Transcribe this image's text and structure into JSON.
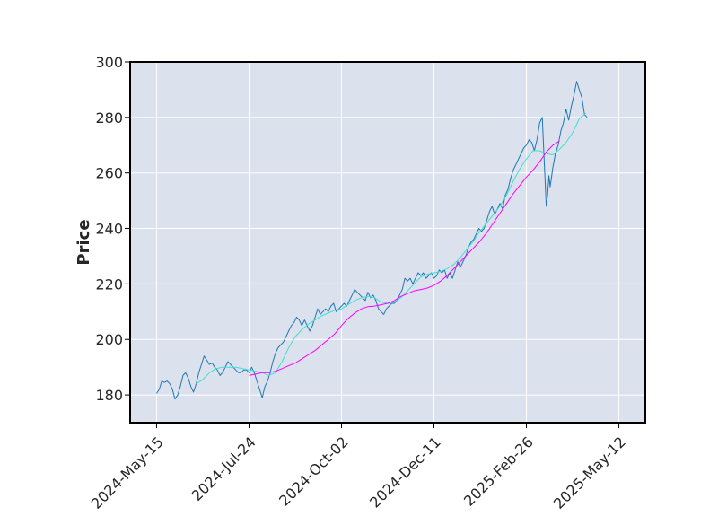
{
  "chart_data": {
    "type": "line",
    "title": "",
    "xlabel": "",
    "ylabel": "Price",
    "ylim": [
      170,
      300
    ],
    "yticks": [
      180,
      200,
      220,
      240,
      260,
      280,
      300
    ],
    "x_index_range": [
      -20,
      370
    ],
    "xticks": [
      {
        "index": 0,
        "label": "2024-May-15"
      },
      {
        "index": 70,
        "label": "2024-Jul-24"
      },
      {
        "index": 140,
        "label": "2024-Oct-02"
      },
      {
        "index": 210,
        "label": "2024-Dec-11"
      },
      {
        "index": 280,
        "label": "2025-Feb-26"
      },
      {
        "index": 350,
        "label": "2025-May-12"
      }
    ],
    "grid": true,
    "legend": "none",
    "colors": {
      "background": "#dce1ee",
      "grid": "#ffffff",
      "frame": "#000000"
    },
    "series": [
      {
        "color": "#1f77b4",
        "points": [
          [
            0,
            180.5
          ],
          [
            2,
            182
          ],
          [
            4,
            185
          ],
          [
            6,
            184.5
          ],
          [
            8,
            185
          ],
          [
            10,
            184
          ],
          [
            12,
            182
          ],
          [
            14,
            178.5
          ],
          [
            16,
            180
          ],
          [
            18,
            183
          ],
          [
            20,
            187
          ],
          [
            22,
            188
          ],
          [
            24,
            186
          ],
          [
            26,
            183
          ],
          [
            28,
            181
          ],
          [
            30,
            184
          ],
          [
            32,
            188
          ],
          [
            34,
            191
          ],
          [
            36,
            194
          ],
          [
            38,
            192.5
          ],
          [
            40,
            191
          ],
          [
            42,
            191.5
          ],
          [
            44,
            190
          ],
          [
            46,
            189
          ],
          [
            48,
            187
          ],
          [
            50,
            188
          ],
          [
            52,
            190
          ],
          [
            54,
            192
          ],
          [
            56,
            191
          ],
          [
            58,
            190
          ],
          [
            60,
            189
          ],
          [
            62,
            188
          ],
          [
            64,
            188
          ],
          [
            66,
            189
          ],
          [
            68,
            189
          ],
          [
            70,
            188
          ],
          [
            72,
            190
          ],
          [
            74,
            188
          ],
          [
            76,
            185
          ],
          [
            78,
            182
          ],
          [
            80,
            179
          ],
          [
            82,
            183
          ],
          [
            84,
            185
          ],
          [
            86,
            188
          ],
          [
            88,
            192
          ],
          [
            90,
            195
          ],
          [
            92,
            197
          ],
          [
            94,
            198
          ],
          [
            96,
            199
          ],
          [
            98,
            201
          ],
          [
            100,
            203
          ],
          [
            102,
            205
          ],
          [
            104,
            206
          ],
          [
            106,
            208
          ],
          [
            108,
            207
          ],
          [
            110,
            205
          ],
          [
            112,
            207
          ],
          [
            114,
            205
          ],
          [
            116,
            203
          ],
          [
            118,
            205
          ],
          [
            120,
            208
          ],
          [
            122,
            211
          ],
          [
            124,
            209
          ],
          [
            126,
            210
          ],
          [
            128,
            211
          ],
          [
            130,
            210
          ],
          [
            132,
            212
          ],
          [
            134,
            213
          ],
          [
            136,
            210
          ],
          [
            138,
            211
          ],
          [
            140,
            212
          ],
          [
            142,
            213
          ],
          [
            144,
            212
          ],
          [
            146,
            214
          ],
          [
            148,
            216
          ],
          [
            150,
            218
          ],
          [
            152,
            217
          ],
          [
            154,
            216
          ],
          [
            156,
            215
          ],
          [
            158,
            214
          ],
          [
            160,
            217
          ],
          [
            162,
            215
          ],
          [
            164,
            216
          ],
          [
            166,
            214
          ],
          [
            168,
            211
          ],
          [
            170,
            210
          ],
          [
            172,
            209
          ],
          [
            174,
            211
          ],
          [
            176,
            212
          ],
          [
            178,
            213
          ],
          [
            180,
            213
          ],
          [
            182,
            214
          ],
          [
            184,
            216
          ],
          [
            186,
            218
          ],
          [
            188,
            222
          ],
          [
            190,
            221
          ],
          [
            192,
            222
          ],
          [
            194,
            220
          ],
          [
            196,
            222
          ],
          [
            198,
            224
          ],
          [
            200,
            223
          ],
          [
            202,
            224
          ],
          [
            204,
            222
          ],
          [
            206,
            223
          ],
          [
            208,
            224
          ],
          [
            210,
            222
          ],
          [
            212,
            223
          ],
          [
            214,
            225
          ],
          [
            216,
            224
          ],
          [
            218,
            225
          ],
          [
            220,
            222
          ],
          [
            222,
            224
          ],
          [
            224,
            222
          ],
          [
            226,
            225
          ],
          [
            228,
            228
          ],
          [
            230,
            226
          ],
          [
            232,
            228
          ],
          [
            234,
            230
          ],
          [
            236,
            233
          ],
          [
            238,
            235
          ],
          [
            240,
            236
          ],
          [
            242,
            238
          ],
          [
            244,
            240
          ],
          [
            246,
            239
          ],
          [
            248,
            240
          ],
          [
            250,
            243
          ],
          [
            252,
            246
          ],
          [
            254,
            248
          ],
          [
            256,
            245
          ],
          [
            258,
            247
          ],
          [
            260,
            249
          ],
          [
            262,
            247
          ],
          [
            264,
            252
          ],
          [
            266,
            254
          ],
          [
            268,
            258
          ],
          [
            270,
            261
          ],
          [
            272,
            263
          ],
          [
            274,
            265
          ],
          [
            276,
            267
          ],
          [
            278,
            269
          ],
          [
            280,
            270
          ],
          [
            282,
            272
          ],
          [
            284,
            271
          ],
          [
            286,
            268
          ],
          [
            288,
            272
          ],
          [
            290,
            278
          ],
          [
            292,
            280
          ],
          [
            294,
            259
          ],
          [
            295,
            248
          ],
          [
            296,
            252
          ],
          [
            297,
            259
          ],
          [
            298,
            255
          ],
          [
            300,
            262
          ],
          [
            302,
            267
          ],
          [
            304,
            270
          ],
          [
            306,
            275
          ],
          [
            308,
            278
          ],
          [
            310,
            283
          ],
          [
            312,
            279
          ],
          [
            314,
            284
          ],
          [
            316,
            288
          ],
          [
            318,
            293
          ],
          [
            320,
            290
          ],
          [
            322,
            287
          ],
          [
            324,
            281
          ],
          [
            326,
            280
          ]
        ]
      },
      {
        "color": "#40e0d0",
        "points": [
          [
            30,
            184
          ],
          [
            35,
            185.5
          ],
          [
            40,
            188
          ],
          [
            45,
            189.5
          ],
          [
            50,
            190
          ],
          [
            55,
            190
          ],
          [
            60,
            190
          ],
          [
            65,
            189.5
          ],
          [
            70,
            189
          ],
          [
            75,
            188.5
          ],
          [
            80,
            188
          ],
          [
            85,
            187
          ],
          [
            90,
            188
          ],
          [
            95,
            192
          ],
          [
            100,
            197
          ],
          [
            105,
            201
          ],
          [
            110,
            203.5
          ],
          [
            115,
            205.5
          ],
          [
            120,
            207
          ],
          [
            125,
            208.5
          ],
          [
            130,
            209.5
          ],
          [
            135,
            210.5
          ],
          [
            140,
            211
          ],
          [
            145,
            212.5
          ],
          [
            150,
            214
          ],
          [
            155,
            215
          ],
          [
            160,
            215.5
          ],
          [
            165,
            215
          ],
          [
            170,
            213.5
          ],
          [
            175,
            213
          ],
          [
            180,
            213.5
          ],
          [
            185,
            215
          ],
          [
            190,
            217.5
          ],
          [
            195,
            220
          ],
          [
            200,
            222.5
          ],
          [
            205,
            223.5
          ],
          [
            210,
            224
          ],
          [
            215,
            224.5
          ],
          [
            220,
            225.5
          ],
          [
            225,
            227
          ],
          [
            230,
            229.5
          ],
          [
            235,
            232.5
          ],
          [
            240,
            235.5
          ],
          [
            245,
            239
          ],
          [
            250,
            242
          ],
          [
            255,
            245
          ],
          [
            260,
            248
          ],
          [
            265,
            252
          ],
          [
            270,
            257
          ],
          [
            275,
            261.5
          ],
          [
            280,
            265
          ],
          [
            285,
            268
          ],
          [
            290,
            268
          ],
          [
            295,
            267
          ],
          [
            300,
            266.5
          ],
          [
            305,
            268.5
          ],
          [
            310,
            271
          ],
          [
            315,
            274.5
          ],
          [
            320,
            279.5
          ],
          [
            325,
            281.5
          ]
        ]
      },
      {
        "color": "#ff00ff",
        "points": [
          [
            70,
            187
          ],
          [
            75,
            187.5
          ],
          [
            80,
            188
          ],
          [
            85,
            188
          ],
          [
            90,
            188.5
          ],
          [
            95,
            189.5
          ],
          [
            100,
            190.5
          ],
          [
            105,
            191.5
          ],
          [
            110,
            193
          ],
          [
            115,
            194.5
          ],
          [
            120,
            196
          ],
          [
            125,
            198
          ],
          [
            130,
            200
          ],
          [
            135,
            202
          ],
          [
            140,
            205
          ],
          [
            145,
            207.5
          ],
          [
            150,
            209.5
          ],
          [
            155,
            211
          ],
          [
            160,
            211.8
          ],
          [
            165,
            212
          ],
          [
            170,
            212.5
          ],
          [
            175,
            213
          ],
          [
            180,
            214
          ],
          [
            185,
            215.5
          ],
          [
            190,
            216.5
          ],
          [
            195,
            217.5
          ],
          [
            200,
            218
          ],
          [
            205,
            218.5
          ],
          [
            210,
            219.5
          ],
          [
            215,
            221
          ],
          [
            220,
            223
          ],
          [
            225,
            225.5
          ],
          [
            230,
            228
          ],
          [
            235,
            230.5
          ],
          [
            240,
            233
          ],
          [
            245,
            235.5
          ],
          [
            250,
            238.5
          ],
          [
            255,
            242
          ],
          [
            260,
            245.5
          ],
          [
            265,
            249
          ],
          [
            270,
            252.5
          ],
          [
            275,
            255.5
          ],
          [
            280,
            258.5
          ],
          [
            285,
            261
          ],
          [
            290,
            264
          ],
          [
            295,
            267.5
          ],
          [
            300,
            270
          ],
          [
            305,
            271.5
          ]
        ]
      }
    ]
  }
}
